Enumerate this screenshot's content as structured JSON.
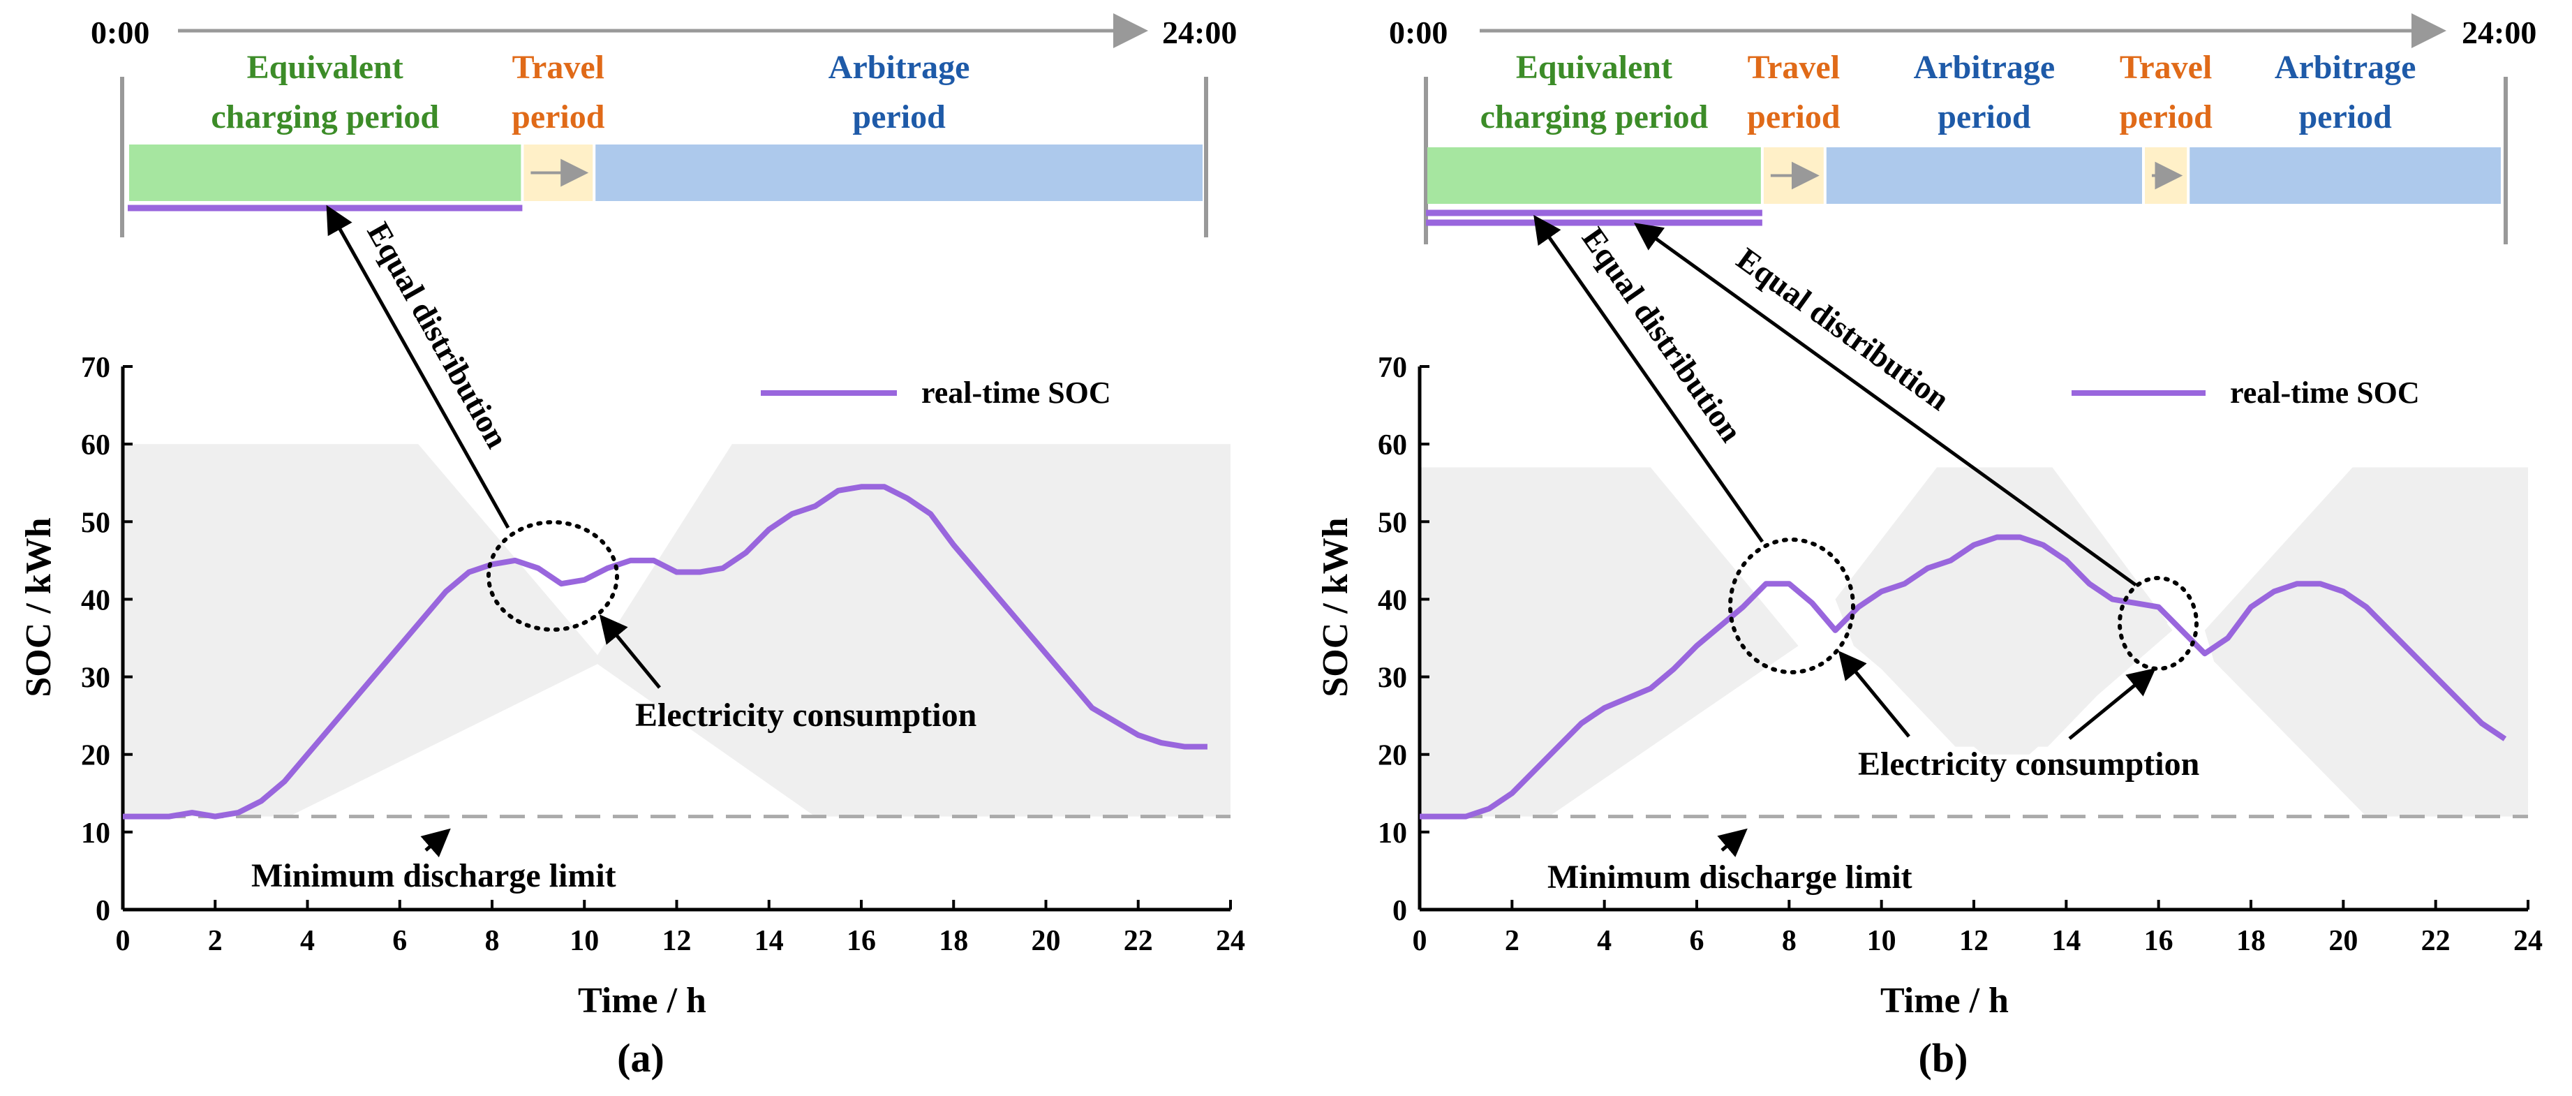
{
  "colors": {
    "soc": "#9966dd",
    "charging": "#a6e6a0",
    "travel": "#fff0c8",
    "arbitrage": "#adc9ec",
    "green_text": "#3c8c28",
    "orange_text": "#e06a18",
    "blue_text": "#1e5aa8",
    "band": "#efefef",
    "axis": "#000000",
    "dashed": "#aaaaaa",
    "timeline_arrow": "#999999"
  },
  "timeline_labels": {
    "start": "0:00",
    "end": "24:00"
  },
  "chart_data": [
    {
      "id": "a",
      "type": "line",
      "panel_label": "(a)",
      "xlabel": "Time / h",
      "ylabel": "SOC / kWh",
      "xlim": [
        0,
        24
      ],
      "ylim": [
        0,
        70
      ],
      "xticks": [
        0,
        2,
        4,
        6,
        8,
        10,
        12,
        14,
        16,
        18,
        20,
        22,
        24
      ],
      "yticks": [
        0,
        10,
        20,
        30,
        40,
        50,
        60,
        70
      ],
      "legend": "real-time SOC",
      "series": [
        {
          "name": "real-time SOC",
          "x": [
            0,
            1,
            1.5,
            2,
            2.5,
            3,
            3.5,
            4,
            5,
            6,
            7,
            7.5,
            8,
            8.5,
            9,
            9.5,
            10,
            10.5,
            11,
            11.5,
            12,
            12.5,
            13,
            13.5,
            14,
            14.5,
            15,
            15.5,
            16,
            16.5,
            17,
            17.5,
            18,
            19,
            20,
            21,
            22,
            22.5,
            23,
            23.5
          ],
          "y": [
            12,
            12,
            12.5,
            12,
            12.5,
            14,
            16.5,
            20,
            27,
            34,
            41,
            43.5,
            44.5,
            45,
            44,
            42,
            42.5,
            44,
            45,
            45,
            43.5,
            43.5,
            44,
            46,
            49,
            51,
            52,
            54,
            54.5,
            54.5,
            53,
            51,
            47,
            40,
            33,
            26,
            22.5,
            21.5,
            21,
            21
          ]
        }
      ],
      "min_limit": {
        "value": 12,
        "label": "Minimum discharge limit"
      },
      "band": {
        "upper": 60,
        "lower": 12
      },
      "annotations": {
        "equal_distribution": "Equal distribution",
        "consumption": "Electricity consumption"
      },
      "periods": [
        {
          "kind": "charging",
          "label_line1": "Equivalent",
          "label_line2": "charging period",
          "start": 0,
          "end": 8.8
        },
        {
          "kind": "travel",
          "label_line1": "Travel",
          "label_line2": "period",
          "start": 8.8,
          "end": 10.4
        },
        {
          "kind": "arbitrage",
          "label_line1": "Arbitrage",
          "label_line2": "period",
          "start": 10.4,
          "end": 24
        }
      ]
    },
    {
      "id": "b",
      "type": "line",
      "panel_label": "(b)",
      "xlabel": "Time / h",
      "ylabel": "SOC / kWh",
      "xlim": [
        0,
        24
      ],
      "ylim": [
        0,
        70
      ],
      "xticks": [
        0,
        2,
        4,
        6,
        8,
        10,
        12,
        14,
        16,
        18,
        20,
        22,
        24
      ],
      "yticks": [
        0,
        10,
        20,
        30,
        40,
        50,
        60,
        70
      ],
      "legend": "real-time SOC",
      "series": [
        {
          "name": "real-time SOC",
          "x": [
            0,
            1,
            1.5,
            2,
            3,
            3.5,
            4,
            5,
            5.5,
            6,
            7,
            7.5,
            8,
            8.5,
            9,
            9.5,
            10,
            10.5,
            11,
            11.5,
            12,
            12.5,
            13,
            13.5,
            14,
            14.5,
            15,
            15.5,
            16,
            16.5,
            17,
            17.5,
            18,
            18.5,
            19,
            19.5,
            20,
            20.5,
            21,
            22,
            23,
            23.5
          ],
          "y": [
            12,
            12,
            13,
            15,
            21,
            24,
            26,
            28.5,
            31,
            34,
            39,
            42,
            42,
            39.5,
            36,
            39,
            41,
            42,
            44,
            45,
            47,
            48,
            48,
            47,
            45,
            42,
            40,
            39.5,
            39,
            36,
            33,
            35,
            39,
            41,
            42,
            42,
            41,
            39,
            36,
            30,
            24,
            22
          ]
        }
      ],
      "min_limit": {
        "value": 12,
        "label": "Minimum discharge limit"
      },
      "band": {
        "upper": 57,
        "lower": 12
      },
      "annotations": {
        "equal_distribution": "Equal distribution",
        "consumption": "Electricity consumption"
      },
      "periods": [
        {
          "kind": "charging",
          "label_line1": "Equivalent",
          "label_line2": "charging period",
          "start": 0,
          "end": 7.5
        },
        {
          "kind": "travel",
          "label_line1": "Travel",
          "label_line2": "period",
          "start": 7.5,
          "end": 8.9
        },
        {
          "kind": "arbitrage",
          "label_line1": "Arbitrage",
          "label_line2": "period",
          "start": 8.9,
          "end": 16.0
        },
        {
          "kind": "travel",
          "label_line1": "Travel",
          "label_line2": "period",
          "start": 16.0,
          "end": 17.0
        },
        {
          "kind": "arbitrage",
          "label_line1": "Arbitrage",
          "label_line2": "period",
          "start": 17.0,
          "end": 24
        }
      ]
    }
  ]
}
